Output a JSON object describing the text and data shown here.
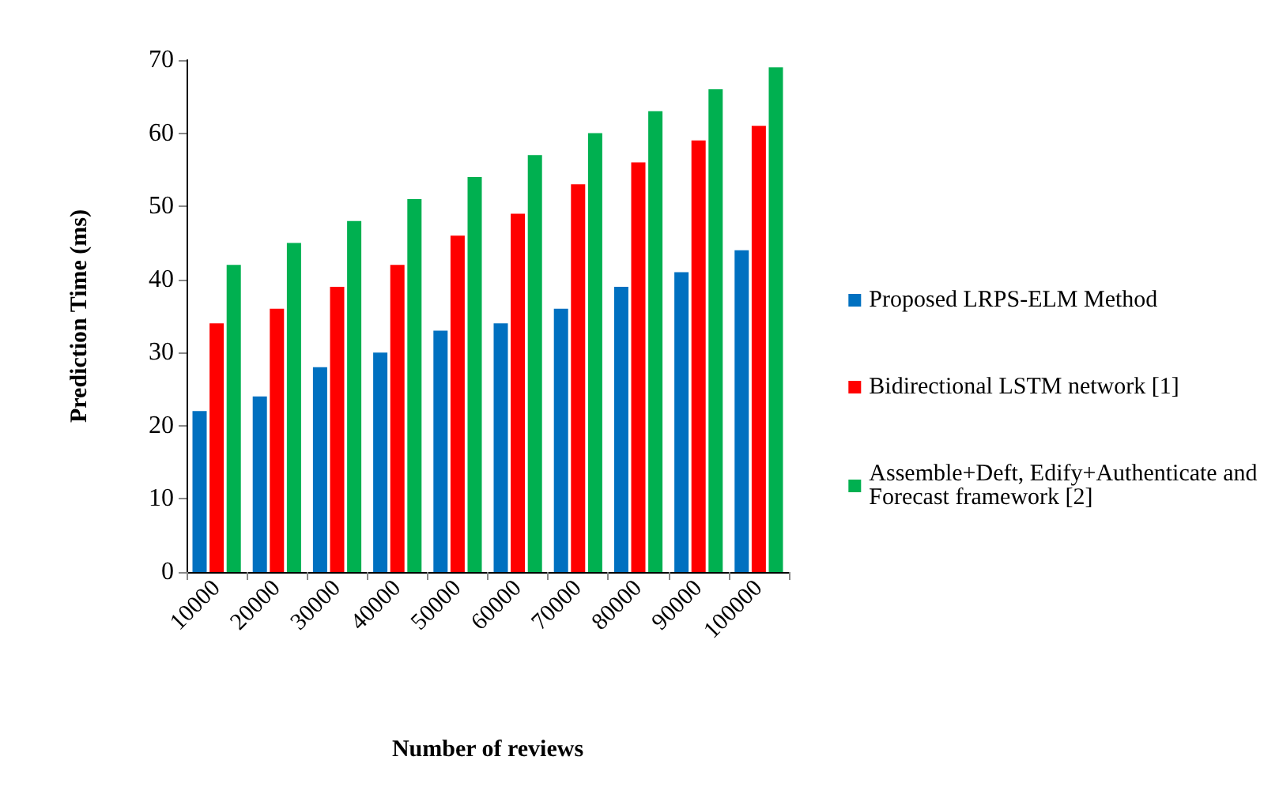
{
  "chart_data": {
    "type": "bar",
    "xlabel": "Number of reviews",
    "ylabel": "Prediction Time (ms)",
    "categories": [
      "10000",
      "20000",
      "30000",
      "40000",
      "50000",
      "60000",
      "70000",
      "80000",
      "90000",
      "100000"
    ],
    "series": [
      {
        "name": "Proposed LRPS-ELM Method",
        "color": "#0070c0",
        "values": [
          22,
          24,
          28,
          30,
          33,
          34,
          36,
          39,
          41,
          44
        ]
      },
      {
        "name": "Bidirectional LSTM network [1]",
        "color": "#ff0000",
        "values": [
          34,
          36,
          39,
          42,
          46,
          49,
          53,
          56,
          59,
          61
        ]
      },
      {
        "name": "Assemble+Deft, Edify+Authenticate and Forecast framework [2]",
        "color": "#00b050",
        "values": [
          42,
          45,
          48,
          51,
          54,
          57,
          60,
          63,
          66,
          69
        ]
      }
    ],
    "ylim": [
      0,
      70
    ],
    "yticks": [
      0,
      10,
      20,
      30,
      40,
      50,
      60,
      70
    ],
    "grid": false,
    "legend": "right"
  }
}
